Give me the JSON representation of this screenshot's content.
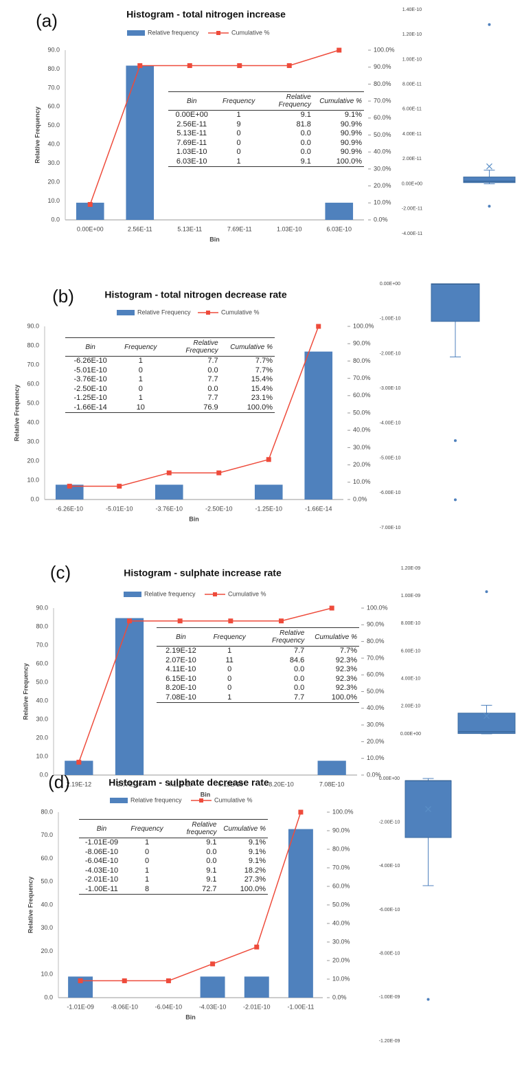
{
  "chart_data": [
    {
      "type": "bar_line",
      "panel": "(a)",
      "title": "Histogram - total nitrogen increase",
      "xlabel": "Bin",
      "ylabel": "Relative Frequency",
      "grid": false,
      "categories": [
        "0.00E+00",
        "2.56E-11",
        "5.13E-11",
        "7.69E-11",
        "1.03E-10",
        "6.03E-10"
      ],
      "series": [
        {
          "name": "Relative frequency",
          "color": "#4f81bd",
          "values": [
            9.1,
            81.8,
            0,
            0,
            0,
            9.1
          ]
        },
        {
          "name": "Cumulative %",
          "color": "#ee4b3b",
          "axis": "y2",
          "values": [
            9.1,
            90.9,
            90.9,
            90.9,
            90.9,
            100
          ]
        }
      ],
      "ylim": [
        0,
        90
      ],
      "yticks": [
        {
          "value": 0,
          "label": "0.0"
        },
        {
          "value": 10,
          "label": "10.0"
        },
        {
          "value": 20,
          "label": "20.0"
        },
        {
          "value": 30,
          "label": "30.0"
        },
        {
          "value": 40,
          "label": "40.0"
        },
        {
          "value": 50,
          "label": "50.0"
        },
        {
          "value": 60,
          "label": "60.0"
        },
        {
          "value": 70,
          "label": "70.0"
        },
        {
          "value": 80,
          "label": "80.0"
        },
        {
          "value": 90,
          "label": "90.0"
        }
      ],
      "y2lim": [
        0,
        100
      ],
      "y2ticks": [
        {
          "value": 0,
          "label": "0.0%"
        },
        {
          "value": 10,
          "label": "10.0%"
        },
        {
          "value": 20,
          "label": "20.0%"
        },
        {
          "value": 30,
          "label": "30.0%"
        },
        {
          "value": 40,
          "label": "40.0%"
        },
        {
          "value": 50,
          "label": "50.0%"
        },
        {
          "value": 60,
          "label": "60.0%"
        },
        {
          "value": 70,
          "label": "70.0%"
        },
        {
          "value": 80,
          "label": "80.0%"
        },
        {
          "value": 90,
          "label": "90.0%"
        },
        {
          "value": 100,
          "label": "100.0%"
        }
      ],
      "table": {
        "header": [
          "Bin",
          "Frequency",
          "Relative Frequency",
          "Cumulative %"
        ],
        "rows": [
          [
            "0.00E+00",
            "1",
            "9.1",
            "9.1%"
          ],
          [
            "2.56E-11",
            "9",
            "81.8",
            "90.9%"
          ],
          [
            "5.13E-11",
            "0",
            "0.0",
            "90.9%"
          ],
          [
            "7.69E-11",
            "0",
            "0.0",
            "90.9%"
          ],
          [
            "1.03E-10",
            "0",
            "0.0",
            "90.9%"
          ],
          [
            "6.03E-10",
            "1",
            "9.1",
            "100.0%"
          ]
        ]
      }
    },
    {
      "type": "box",
      "ylim": [
        -4e-11,
        1.4e-10
      ],
      "yticks": [
        {
          "value": -4e-11,
          "label": "-4.00E-11"
        },
        {
          "value": -2e-11,
          "label": "-2.00E-11"
        },
        {
          "value": 0,
          "label": "0.00E+00"
        },
        {
          "value": 2e-11,
          "label": "2.00E-11"
        },
        {
          "value": 4e-11,
          "label": "4.00E-11"
        },
        {
          "value": 6e-11,
          "label": "6.00E-11"
        },
        {
          "value": 8e-11,
          "label": "8.00E-11"
        },
        {
          "value": 1e-10,
          "label": "1.00E-10"
        },
        {
          "value": 1.2e-10,
          "label": "1.20E-10"
        },
        {
          "value": 1.4e-10,
          "label": "1.40E-10"
        }
      ],
      "color": "#4f81bd",
      "min": 0,
      "q1": 1e-12,
      "median": 2e-12,
      "q3": 5.5e-12,
      "max": 1.1e-11,
      "mean": 1.4e-11,
      "outliers": [
        1.28e-10,
        -1.8e-11
      ]
    },
    {
      "type": "bar_line",
      "panel": "(b)",
      "title": "Histogram - total nitrogen decrease rate",
      "xlabel": "Bin",
      "ylabel": "Relative Frequency",
      "grid": false,
      "categories": [
        "-6.26E-10",
        "-5.01E-10",
        "-3.76E-10",
        "-2.50E-10",
        "-1.25E-10",
        "-1.66E-14"
      ],
      "series": [
        {
          "name": "Relative Frequency",
          "color": "#4f81bd",
          "values": [
            7.7,
            0,
            7.7,
            0,
            7.7,
            76.9
          ]
        },
        {
          "name": "Cumulative %",
          "color": "#ee4b3b",
          "axis": "y2",
          "values": [
            7.7,
            7.7,
            15.4,
            15.4,
            23.1,
            100
          ]
        }
      ],
      "ylim": [
        0,
        90
      ],
      "yticks": [
        {
          "value": 0,
          "label": "0.0"
        },
        {
          "value": 10,
          "label": "10.0"
        },
        {
          "value": 20,
          "label": "20.0"
        },
        {
          "value": 30,
          "label": "30.0"
        },
        {
          "value": 40,
          "label": "40.0"
        },
        {
          "value": 50,
          "label": "50.0"
        },
        {
          "value": 60,
          "label": "60.0"
        },
        {
          "value": 70,
          "label": "70.0"
        },
        {
          "value": 80,
          "label": "80.0"
        },
        {
          "value": 90,
          "label": "90.0"
        }
      ],
      "y2lim": [
        0,
        100
      ],
      "y2ticks": [
        {
          "value": 0,
          "label": "0.0%"
        },
        {
          "value": 10,
          "label": "10.0%"
        },
        {
          "value": 20,
          "label": "20.0%"
        },
        {
          "value": 30,
          "label": "30.0%"
        },
        {
          "value": 40,
          "label": "40.0%"
        },
        {
          "value": 50,
          "label": "50.0%"
        },
        {
          "value": 60,
          "label": "60.0%"
        },
        {
          "value": 70,
          "label": "70.0%"
        },
        {
          "value": 80,
          "label": "80.0%"
        },
        {
          "value": 90,
          "label": "90.0%"
        },
        {
          "value": 100,
          "label": "100.0%"
        }
      ],
      "table": {
        "header": [
          "Bin",
          "Frequency",
          "Relative Frequency",
          "Cumulative %"
        ],
        "rows": [
          [
            "-6.26E-10",
            "1",
            "7.7",
            "7.7%"
          ],
          [
            "-5.01E-10",
            "0",
            "0.0",
            "7.7%"
          ],
          [
            "-3.76E-10",
            "1",
            "7.7",
            "15.4%"
          ],
          [
            "-2.50E-10",
            "0",
            "0.0",
            "15.4%"
          ],
          [
            "-1.25E-10",
            "1",
            "7.7",
            "23.1%"
          ],
          [
            "-1.66E-14",
            "10",
            "76.9",
            "100.0%"
          ]
        ]
      }
    },
    {
      "type": "box",
      "ylim": [
        -7e-10,
        0
      ],
      "yticks": [
        {
          "value": 0,
          "label": "0.00E+00"
        },
        {
          "value": -1e-10,
          "label": "-1.00E-10"
        },
        {
          "value": -2e-10,
          "label": "-2.00E-10"
        },
        {
          "value": -3e-10,
          "label": "-3.00E-10"
        },
        {
          "value": -4e-10,
          "label": "-4.00E-10"
        },
        {
          "value": -5e-10,
          "label": "-5.00E-10"
        },
        {
          "value": -6e-10,
          "label": "-6.00E-10"
        },
        {
          "value": -7e-10,
          "label": "-7.00E-10"
        }
      ],
      "color": "#4f81bd",
      "min": -2.1e-10,
      "q1": -1.08e-10,
      "median": -1e-12,
      "q3": 0,
      "max": 0,
      "outliers": [
        -4.5e-10,
        -6.2e-10
      ]
    },
    {
      "type": "bar_line",
      "panel": "(c)",
      "title": "Histogram - sulphate increase rate",
      "xlabel": "Bin",
      "ylabel": "Relative Frequency",
      "grid": false,
      "categories": [
        "2.19E-12",
        "2.07E-10",
        "4.11E-10",
        "6.15E-10",
        "8.20E-10",
        "7.08E-10"
      ],
      "series": [
        {
          "name": "Relative frequency",
          "color": "#4f81bd",
          "values": [
            7.7,
            84.6,
            0,
            0,
            0,
            7.7
          ]
        },
        {
          "name": "Cumulative %",
          "color": "#ee4b3b",
          "axis": "y2",
          "values": [
            7.7,
            92.3,
            92.3,
            92.3,
            92.3,
            100
          ]
        }
      ],
      "ylim": [
        0,
        90
      ],
      "yticks": [
        {
          "value": 0,
          "label": "0.0"
        },
        {
          "value": 10,
          "label": "10.0"
        },
        {
          "value": 20,
          "label": "20.0"
        },
        {
          "value": 30,
          "label": "30.0"
        },
        {
          "value": 40,
          "label": "40.0"
        },
        {
          "value": 50,
          "label": "50.0"
        },
        {
          "value": 60,
          "label": "60.0"
        },
        {
          "value": 70,
          "label": "70.0"
        },
        {
          "value": 80,
          "label": "80.0"
        },
        {
          "value": 90,
          "label": "90.0"
        }
      ],
      "y2lim": [
        0,
        100
      ],
      "y2ticks": [
        {
          "value": 0,
          "label": "0.0%"
        },
        {
          "value": 10,
          "label": "10.0%"
        },
        {
          "value": 20,
          "label": "20.0%"
        },
        {
          "value": 30,
          "label": "30.0%"
        },
        {
          "value": 40,
          "label": "40.0%"
        },
        {
          "value": 50,
          "label": "50.0%"
        },
        {
          "value": 60,
          "label": "60.0%"
        },
        {
          "value": 70,
          "label": "70.0%"
        },
        {
          "value": 80,
          "label": "80.0%"
        },
        {
          "value": 90,
          "label": "90.0%"
        },
        {
          "value": 100,
          "label": "100.0%"
        }
      ],
      "table": {
        "header": [
          "Bin",
          "Frequency",
          "Relative Frequency",
          "Cumulative %"
        ],
        "rows": [
          [
            "2.19E-12",
            "1",
            "7.7",
            "7.7%"
          ],
          [
            "2.07E-10",
            "11",
            "84.6",
            "92.3%"
          ],
          [
            "4.11E-10",
            "0",
            "0.0",
            "92.3%"
          ],
          [
            "6.15E-10",
            "0",
            "0.0",
            "92.3%"
          ],
          [
            "8.20E-10",
            "0",
            "0.0",
            "92.3%"
          ],
          [
            "7.08E-10",
            "1",
            "7.7",
            "100.0%"
          ]
        ]
      }
    },
    {
      "type": "box",
      "ylim": [
        0,
        1.2e-09
      ],
      "yticks": [
        {
          "value": 0,
          "label": "0.00E+00"
        },
        {
          "value": 2e-10,
          "label": "2.00E-10"
        },
        {
          "value": 4e-10,
          "label": "4.00E-10"
        },
        {
          "value": 6e-10,
          "label": "6.00E-10"
        },
        {
          "value": 8e-10,
          "label": "8.00E-10"
        },
        {
          "value": 1e-09,
          "label": "1.00E-09"
        },
        {
          "value": 1.2e-09,
          "label": "1.20E-09"
        }
      ],
      "color": "#4f81bd",
      "min": 0,
      "q1": 2e-12,
      "median": 1.5e-11,
      "q3": 1.5e-10,
      "max": 2.07e-10,
      "mean": 1.3e-10,
      "outliers": [
        1.03e-09
      ]
    },
    {
      "type": "bar_line",
      "panel": "(d)",
      "title": "Histogram - sulphate decrease rate",
      "xlabel": "Bin",
      "ylabel": "Relative Frequency",
      "grid": false,
      "categories": [
        "-1.01E-09",
        "-8.06E-10",
        "-6.04E-10",
        "-4.03E-10",
        "-2.01E-10",
        "-1.00E-11"
      ],
      "series": [
        {
          "name": "Relative frequency",
          "color": "#4f81bd",
          "values": [
            9.1,
            0,
            0,
            9.1,
            9.1,
            72.7
          ]
        },
        {
          "name": "Cumulative %",
          "color": "#ee4b3b",
          "axis": "y2",
          "values": [
            9.1,
            9.1,
            9.1,
            18.2,
            27.3,
            100
          ]
        }
      ],
      "ylim": [
        0,
        80
      ],
      "yticks": [
        {
          "value": 0,
          "label": "0.0"
        },
        {
          "value": 10,
          "label": "10.0"
        },
        {
          "value": 20,
          "label": "20.0"
        },
        {
          "value": 30,
          "label": "30.0"
        },
        {
          "value": 40,
          "label": "40.0"
        },
        {
          "value": 50,
          "label": "50.0"
        },
        {
          "value": 60,
          "label": "60.0"
        },
        {
          "value": 70,
          "label": "70.0"
        },
        {
          "value": 80,
          "label": "80.0"
        }
      ],
      "y2lim": [
        0,
        100
      ],
      "y2ticks": [
        {
          "value": 0,
          "label": "0.0%"
        },
        {
          "value": 10,
          "label": "10.0%"
        },
        {
          "value": 20,
          "label": "20.0%"
        },
        {
          "value": 30,
          "label": "30.0%"
        },
        {
          "value": 40,
          "label": "40.0%"
        },
        {
          "value": 50,
          "label": "50.0%"
        },
        {
          "value": 60,
          "label": "60.0%"
        },
        {
          "value": 70,
          "label": "70.0%"
        },
        {
          "value": 80,
          "label": "80.0%"
        },
        {
          "value": 90,
          "label": "90.0%"
        },
        {
          "value": 100,
          "label": "100.0%"
        }
      ],
      "table": {
        "header": [
          "Bin",
          "Frequency",
          "Relative frequency",
          "Cumulative %"
        ],
        "rows": [
          [
            "-1.01E-09",
            "1",
            "9.1",
            "9.1%"
          ],
          [
            "-8.06E-10",
            "0",
            "0.0",
            "9.1%"
          ],
          [
            "-6.04E-10",
            "0",
            "0.0",
            "9.1%"
          ],
          [
            "-4.03E-10",
            "1",
            "9.1",
            "18.2%"
          ],
          [
            "-2.01E-10",
            "1",
            "9.1",
            "27.3%"
          ],
          [
            "-1.00E-11",
            "8",
            "72.7",
            "100.0%"
          ]
        ]
      }
    },
    {
      "type": "box",
      "ylim": [
        -1.2e-09,
        0
      ],
      "yticks": [
        {
          "value": 0,
          "label": "0.00E+00"
        },
        {
          "value": -2e-10,
          "label": "-2.00E-10"
        },
        {
          "value": -4e-10,
          "label": "-4.00E-10"
        },
        {
          "value": -6e-10,
          "label": "-6.00E-10"
        },
        {
          "value": -8e-10,
          "label": "-8.00E-10"
        },
        {
          "value": -1e-09,
          "label": "-1.00E-09"
        },
        {
          "value": -1.2e-09,
          "label": "-1.20E-09"
        }
      ],
      "color": "#4f81bd",
      "min": -4.9e-10,
      "q1": -2.7e-10,
      "median": -1e-11,
      "q3": -1e-11,
      "max": 0,
      "mean": -1.4e-10,
      "outliers": [
        -1.01e-09
      ]
    }
  ]
}
